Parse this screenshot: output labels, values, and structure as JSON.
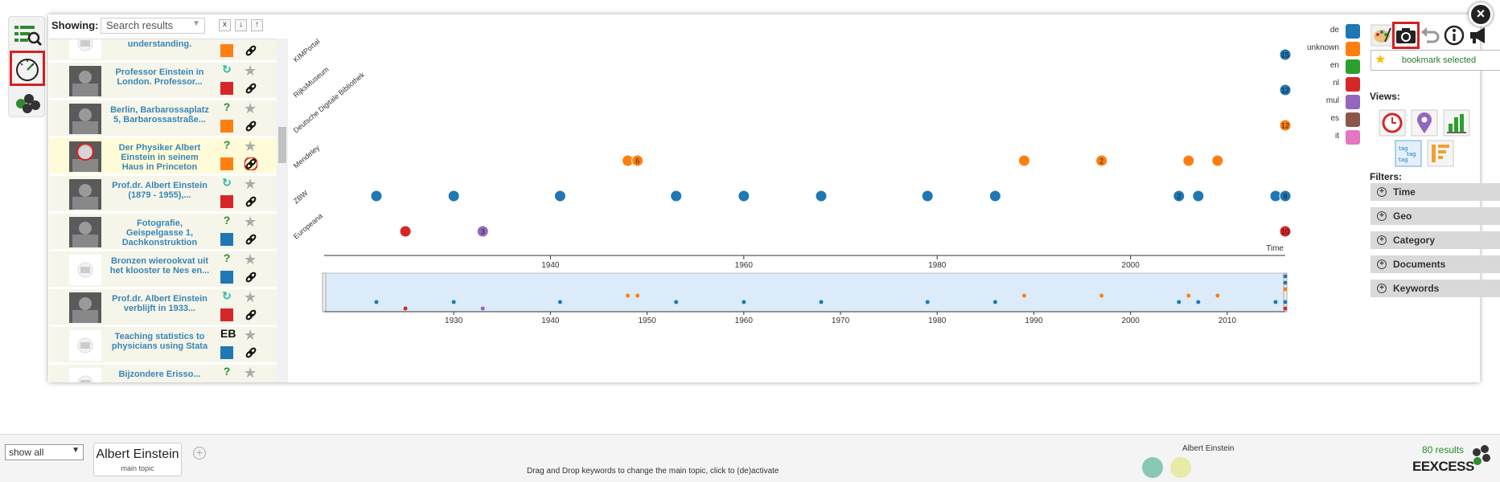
{
  "list_header": {
    "showing_label": "Showing:",
    "showing_value": "Search results",
    "btn_clear": "x",
    "btn_down": "↓",
    "btn_up": "↑"
  },
  "results": [
    {
      "title": "A plea for international understanding.",
      "type": "?",
      "type_color": "#2e8b2e",
      "lang_color": "#ff8010",
      "thumb": "placeholder",
      "selected": false
    },
    {
      "title": "Professor Einstein in London. Professor...",
      "type": "↻",
      "type_color": "#27b5a4",
      "lang_color": "#d62728",
      "thumb": "photo",
      "selected": false
    },
    {
      "title": "Berlin, Barbarossaplatz 5, Barbarossastraße...",
      "type": "?",
      "type_color": "#2e8b2e",
      "lang_color": "#ff8010",
      "thumb": "photo",
      "selected": false
    },
    {
      "title": "Der Physiker Albert Einstein in seinem Haus in Princeton",
      "type": "?",
      "type_color": "#2e8b2e",
      "lang_color": "#ff8010",
      "thumb": "photo",
      "selected": true
    },
    {
      "title": "Prof.dr. Albert Einstein (1879 - 1955),...",
      "type": "↻",
      "type_color": "#27b5a4",
      "lang_color": "#d62728",
      "thumb": "photo",
      "selected": false
    },
    {
      "title": "Fotografie, Geispelgasse 1, Dachkonstruktion",
      "type": "?",
      "type_color": "#2e8b2e",
      "lang_color": "#1f77b4",
      "thumb": "photo",
      "selected": false
    },
    {
      "title": "Bronzen wierookvat uit het klooster te Nes en...",
      "type": "?",
      "type_color": "#2e8b2e",
      "lang_color": "#1f77b4",
      "thumb": "placeholder",
      "selected": false
    },
    {
      "title": "Prof.dr. Albert Einstein verblijft in 1933...",
      "type": "↻",
      "type_color": "#27b5a4",
      "lang_color": "#d62728",
      "thumb": "photo",
      "selected": false
    },
    {
      "title": "Teaching statistics to physicians using Stata",
      "type": "EB",
      "type_color": "#111111",
      "lang_color": "#1f77b4",
      "thumb": "placeholder",
      "selected": false
    },
    {
      "title": "Bijzondere Erisso...",
      "type": "?",
      "type_color": "#2e8b2e",
      "lang_color": "#1f77b4",
      "thumb": "placeholder",
      "selected": false
    }
  ],
  "chart_data": {
    "type": "scatter",
    "y_categories": [
      "KIMPortal",
      "RijksMuseum",
      "Deutsche Digitale Bibliothek",
      "Mendeley",
      "ZBW",
      "Europeana"
    ],
    "x_axis_title": "Time",
    "x_ticks_main": [
      "1940",
      "1960",
      "1980",
      "2000"
    ],
    "x_ticks_overview": [
      "1930",
      "1940",
      "1950",
      "1960",
      "1970",
      "1980",
      "1990",
      "2000",
      "2010"
    ],
    "xlim": [
      1922,
      2016
    ],
    "points": [
      {
        "source": "KIMPortal",
        "year": 2016,
        "lang": "de",
        "count": "15"
      },
      {
        "source": "RijksMuseum",
        "year": 2016,
        "lang": "de",
        "count": "12"
      },
      {
        "source": "Deutsche Digitale Bibliothek",
        "year": 2016,
        "lang": "unknown",
        "count": "12"
      },
      {
        "source": "Mendeley",
        "year": 1948,
        "lang": "unknown",
        "count": ""
      },
      {
        "source": "Mendeley",
        "year": 1949,
        "lang": "unknown",
        "count": "6"
      },
      {
        "source": "Mendeley",
        "year": 1989,
        "lang": "unknown",
        "count": ""
      },
      {
        "source": "Mendeley",
        "year": 1997,
        "lang": "unknown",
        "count": "2"
      },
      {
        "source": "Mendeley",
        "year": 2006,
        "lang": "unknown",
        "count": ""
      },
      {
        "source": "Mendeley",
        "year": 2009,
        "lang": "unknown",
        "count": ""
      },
      {
        "source": "ZBW",
        "year": 1922,
        "lang": "de",
        "count": ""
      },
      {
        "source": "ZBW",
        "year": 1930,
        "lang": "de",
        "count": ""
      },
      {
        "source": "ZBW",
        "year": 1941,
        "lang": "de",
        "count": ""
      },
      {
        "source": "ZBW",
        "year": 1953,
        "lang": "de",
        "count": ""
      },
      {
        "source": "ZBW",
        "year": 1960,
        "lang": "de",
        "count": ""
      },
      {
        "source": "ZBW",
        "year": 1968,
        "lang": "de",
        "count": ""
      },
      {
        "source": "ZBW",
        "year": 1979,
        "lang": "de",
        "count": ""
      },
      {
        "source": "ZBW",
        "year": 1986,
        "lang": "de",
        "count": ""
      },
      {
        "source": "ZBW",
        "year": 2005,
        "lang": "de",
        "count": "2"
      },
      {
        "source": "ZBW",
        "year": 2007,
        "lang": "de",
        "count": ""
      },
      {
        "source": "ZBW",
        "year": 2015,
        "lang": "de",
        "count": ""
      },
      {
        "source": "ZBW",
        "year": 2016,
        "lang": "de",
        "count": "8"
      },
      {
        "source": "Europeana",
        "year": 1925,
        "lang": "nl",
        "count": ""
      },
      {
        "source": "Europeana",
        "year": 1933,
        "lang": "mul",
        "count": "3"
      },
      {
        "source": "Europeana",
        "year": 2016,
        "lang": "nl",
        "count": "10"
      }
    ],
    "legend": [
      {
        "name": "de",
        "color": "#1f77b4"
      },
      {
        "name": "unknown",
        "color": "#ff7f0e"
      },
      {
        "name": "en",
        "color": "#2ca02c"
      },
      {
        "name": "nl",
        "color": "#d62728"
      },
      {
        "name": "mul",
        "color": "#9467bd"
      },
      {
        "name": "es",
        "color": "#8c564b"
      },
      {
        "name": "it",
        "color": "#e377c2"
      }
    ],
    "legend_placement": "top-right"
  },
  "right_panel": {
    "bookmark_label": "bookmark selected",
    "views_heading": "Views:",
    "filters_heading": "Filters:",
    "filters": [
      "Time",
      "Geo",
      "Category",
      "Documents",
      "Keywords"
    ]
  },
  "bottom": {
    "showall_value": "show all",
    "topic_name": "Albert Einstein",
    "topic_sub": "main topic",
    "add_symbol": "+",
    "hint": "Drag and Drop keywords to change the main topic, click to (de)activate",
    "keyword_label": "Albert Einstein",
    "results_count": "80 results",
    "brand": "EEXCESS"
  },
  "close_symbol": "×"
}
